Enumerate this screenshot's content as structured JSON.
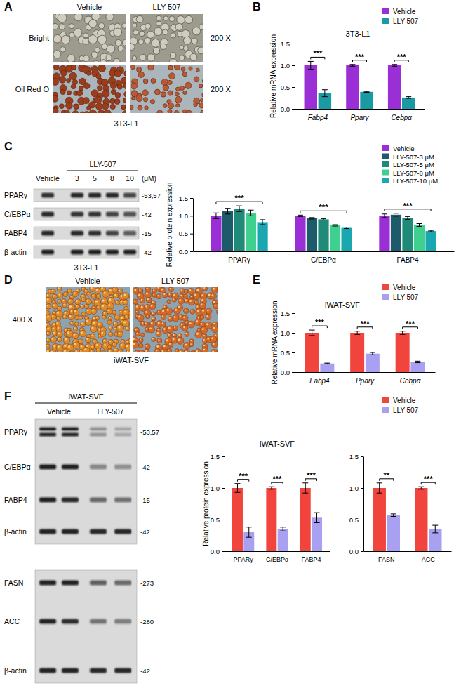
{
  "panel_labels": [
    "A",
    "B",
    "C",
    "D",
    "E",
    "F"
  ],
  "images": [
    {
      "columns": [
        "Vehicle",
        "LLY-507"
      ],
      "rows": [
        "Bright",
        "Oil Red O"
      ],
      "magnification": [
        "200 X",
        "200 X"
      ],
      "caption": "3T3-L1"
    },
    {
      "columns": [
        "Vehicle",
        "LLY-507"
      ],
      "magnification": [
        "400 X"
      ],
      "caption": "iWAT-SVF"
    }
  ],
  "blots": [
    {
      "caption": "3T3-L1",
      "lanes": [
        "Vehicle",
        "3",
        "5",
        "8",
        "10"
      ],
      "lane_group": "LLY-507",
      "unit": "(μM)",
      "rows": [
        {
          "label": "PPARγ",
          "size": "-53,57"
        },
        {
          "label": "C/EBPα",
          "size": "-42"
        },
        {
          "label": "FABP4",
          "size": "-15"
        },
        {
          "label": "β-actin",
          "size": "-42"
        }
      ]
    },
    {
      "caption": "iWAT-SVF",
      "lane_groups": [
        "Vehicle",
        "LLY-507"
      ],
      "rows": [
        {
          "label": "PPARγ",
          "size": "-53,57"
        },
        {
          "label": "C/EBPα",
          "size": "-42"
        },
        {
          "label": "FABP4",
          "size": "-15"
        },
        {
          "label": "β-actin",
          "size": "-42"
        },
        {
          "label": "FASN",
          "size": "-273"
        },
        {
          "label": "ACC",
          "size": "-280"
        },
        {
          "label": "β-actin",
          "size": "-42"
        }
      ]
    }
  ],
  "chart_data": [
    {
      "type": "bar",
      "title": "3T3-L1",
      "y_label": "Relative mRNA expression",
      "categories": [
        "Fabp4",
        "Pparγ",
        "Cebpα"
      ],
      "series": [
        {
          "name": "Vehicle",
          "color": "#9a2fd6",
          "values": [
            1.0,
            1.0,
            1.0
          ],
          "errors": [
            0.09,
            0.02,
            0.02
          ]
        },
        {
          "name": "LLY-507",
          "color": "#1a9ba3",
          "values": [
            0.36,
            0.39,
            0.26
          ],
          "errors": [
            0.08,
            0.01,
            0.02
          ]
        }
      ],
      "ylim": [
        0,
        1.5
      ],
      "yticks": [
        {
          "value": 0,
          "label": "0.0"
        },
        0.5,
        {
          "value": 1,
          "label": "1.0"
        },
        1.5
      ],
      "significance": [
        "***",
        "***",
        "***"
      ],
      "legend": "top-right"
    },
    {
      "type": "bar",
      "y_label": "Relative protein expression",
      "categories": [
        "PPARγ",
        "C/EBPα",
        "FABP4"
      ],
      "series": [
        {
          "name": "Vehicle",
          "color": "#9a2fd6",
          "values": [
            1.0,
            1.0,
            1.0
          ],
          "errors": [
            0.08,
            0.02,
            0.05
          ]
        },
        {
          "name": "LLY-507-3 μM",
          "color": "#1d5a6a",
          "values": [
            1.13,
            0.93,
            1.03
          ],
          "errors": [
            0.08,
            0.02,
            0.04
          ]
        },
        {
          "name": "LLY-507-5 μM",
          "color": "#1f8a78",
          "values": [
            1.2,
            0.9,
            0.94
          ],
          "errors": [
            0.08,
            0.02,
            0.04
          ]
        },
        {
          "name": "LLY-507-8 μM",
          "color": "#3fd08f",
          "values": [
            1.08,
            0.73,
            0.74
          ],
          "errors": [
            0.08,
            0.02,
            0.04
          ]
        },
        {
          "name": "LLY-507-10 μM",
          "color": "#1aa7b0",
          "values": [
            0.82,
            0.66,
            0.57
          ],
          "errors": [
            0.07,
            0.02,
            0.02
          ]
        }
      ],
      "ylim": [
        0,
        1.5
      ],
      "yticks": [
        {
          "value": 0,
          "label": "0.0"
        },
        0.5,
        {
          "value": 1,
          "label": "1.0"
        },
        1.5
      ],
      "significance": [
        "***",
        "***",
        "***"
      ],
      "legend": "top-right"
    },
    {
      "type": "bar",
      "title": "iWAT-SVF",
      "y_label": "Relative mRNA expression",
      "categories": [
        "Fabp4",
        "Pparγ",
        "Cebpα"
      ],
      "series": [
        {
          "name": "Vehicle",
          "color": "#f0443c",
          "values": [
            1.0,
            1.0,
            1.0
          ],
          "errors": [
            0.07,
            0.04,
            0.04
          ]
        },
        {
          "name": "LLY-507",
          "color": "#a8a0f0",
          "values": [
            0.22,
            0.47,
            0.26
          ],
          "errors": [
            0.01,
            0.03,
            0.02
          ]
        }
      ],
      "ylim": [
        0,
        1.5
      ],
      "yticks": [
        {
          "value": 0,
          "label": "0.0"
        },
        0.5,
        {
          "value": 1,
          "label": "1.0"
        },
        1.5
      ],
      "significance": [
        "***",
        "***",
        "***"
      ],
      "legend": "top-right"
    },
    {
      "type": "bar",
      "title": "iWAT-SVF",
      "y_label": "Relative protein expression",
      "categories": [
        "PPARγ",
        "C/EBPα",
        "FABP4"
      ],
      "series": [
        {
          "color": "#f0443c",
          "values": [
            1.0,
            1.0,
            1.0
          ],
          "errors": [
            0.07,
            0.02,
            0.08
          ]
        },
        {
          "color": "#a8a0f0",
          "values": [
            0.3,
            0.35,
            0.53
          ],
          "errors": [
            0.08,
            0.03,
            0.08
          ]
        }
      ],
      "ylim": [
        0,
        1.5
      ],
      "yticks": [
        {
          "value": 0,
          "label": "0.0"
        },
        0.5,
        {
          "value": 1,
          "label": "1.0"
        },
        1.5
      ],
      "significance": [
        "***",
        "***",
        "***"
      ]
    },
    {
      "type": "bar",
      "categories": [
        "FASN",
        "ACC"
      ],
      "series": [
        {
          "name": "Vehicle",
          "color": "#f0443c",
          "values": [
            1.0,
            1.0
          ],
          "errors": [
            0.08,
            0.02
          ]
        },
        {
          "name": "LLY-507",
          "color": "#a8a0f0",
          "values": [
            0.57,
            0.35
          ],
          "errors": [
            0.02,
            0.06
          ]
        }
      ],
      "ylim": [
        0,
        1.5
      ],
      "yticks": [
        {
          "value": 0,
          "label": "0.0"
        },
        0.5,
        {
          "value": 1,
          "label": "1.0"
        },
        1.5
      ],
      "significance": [
        "**",
        "***"
      ],
      "legend": "top-right"
    }
  ]
}
